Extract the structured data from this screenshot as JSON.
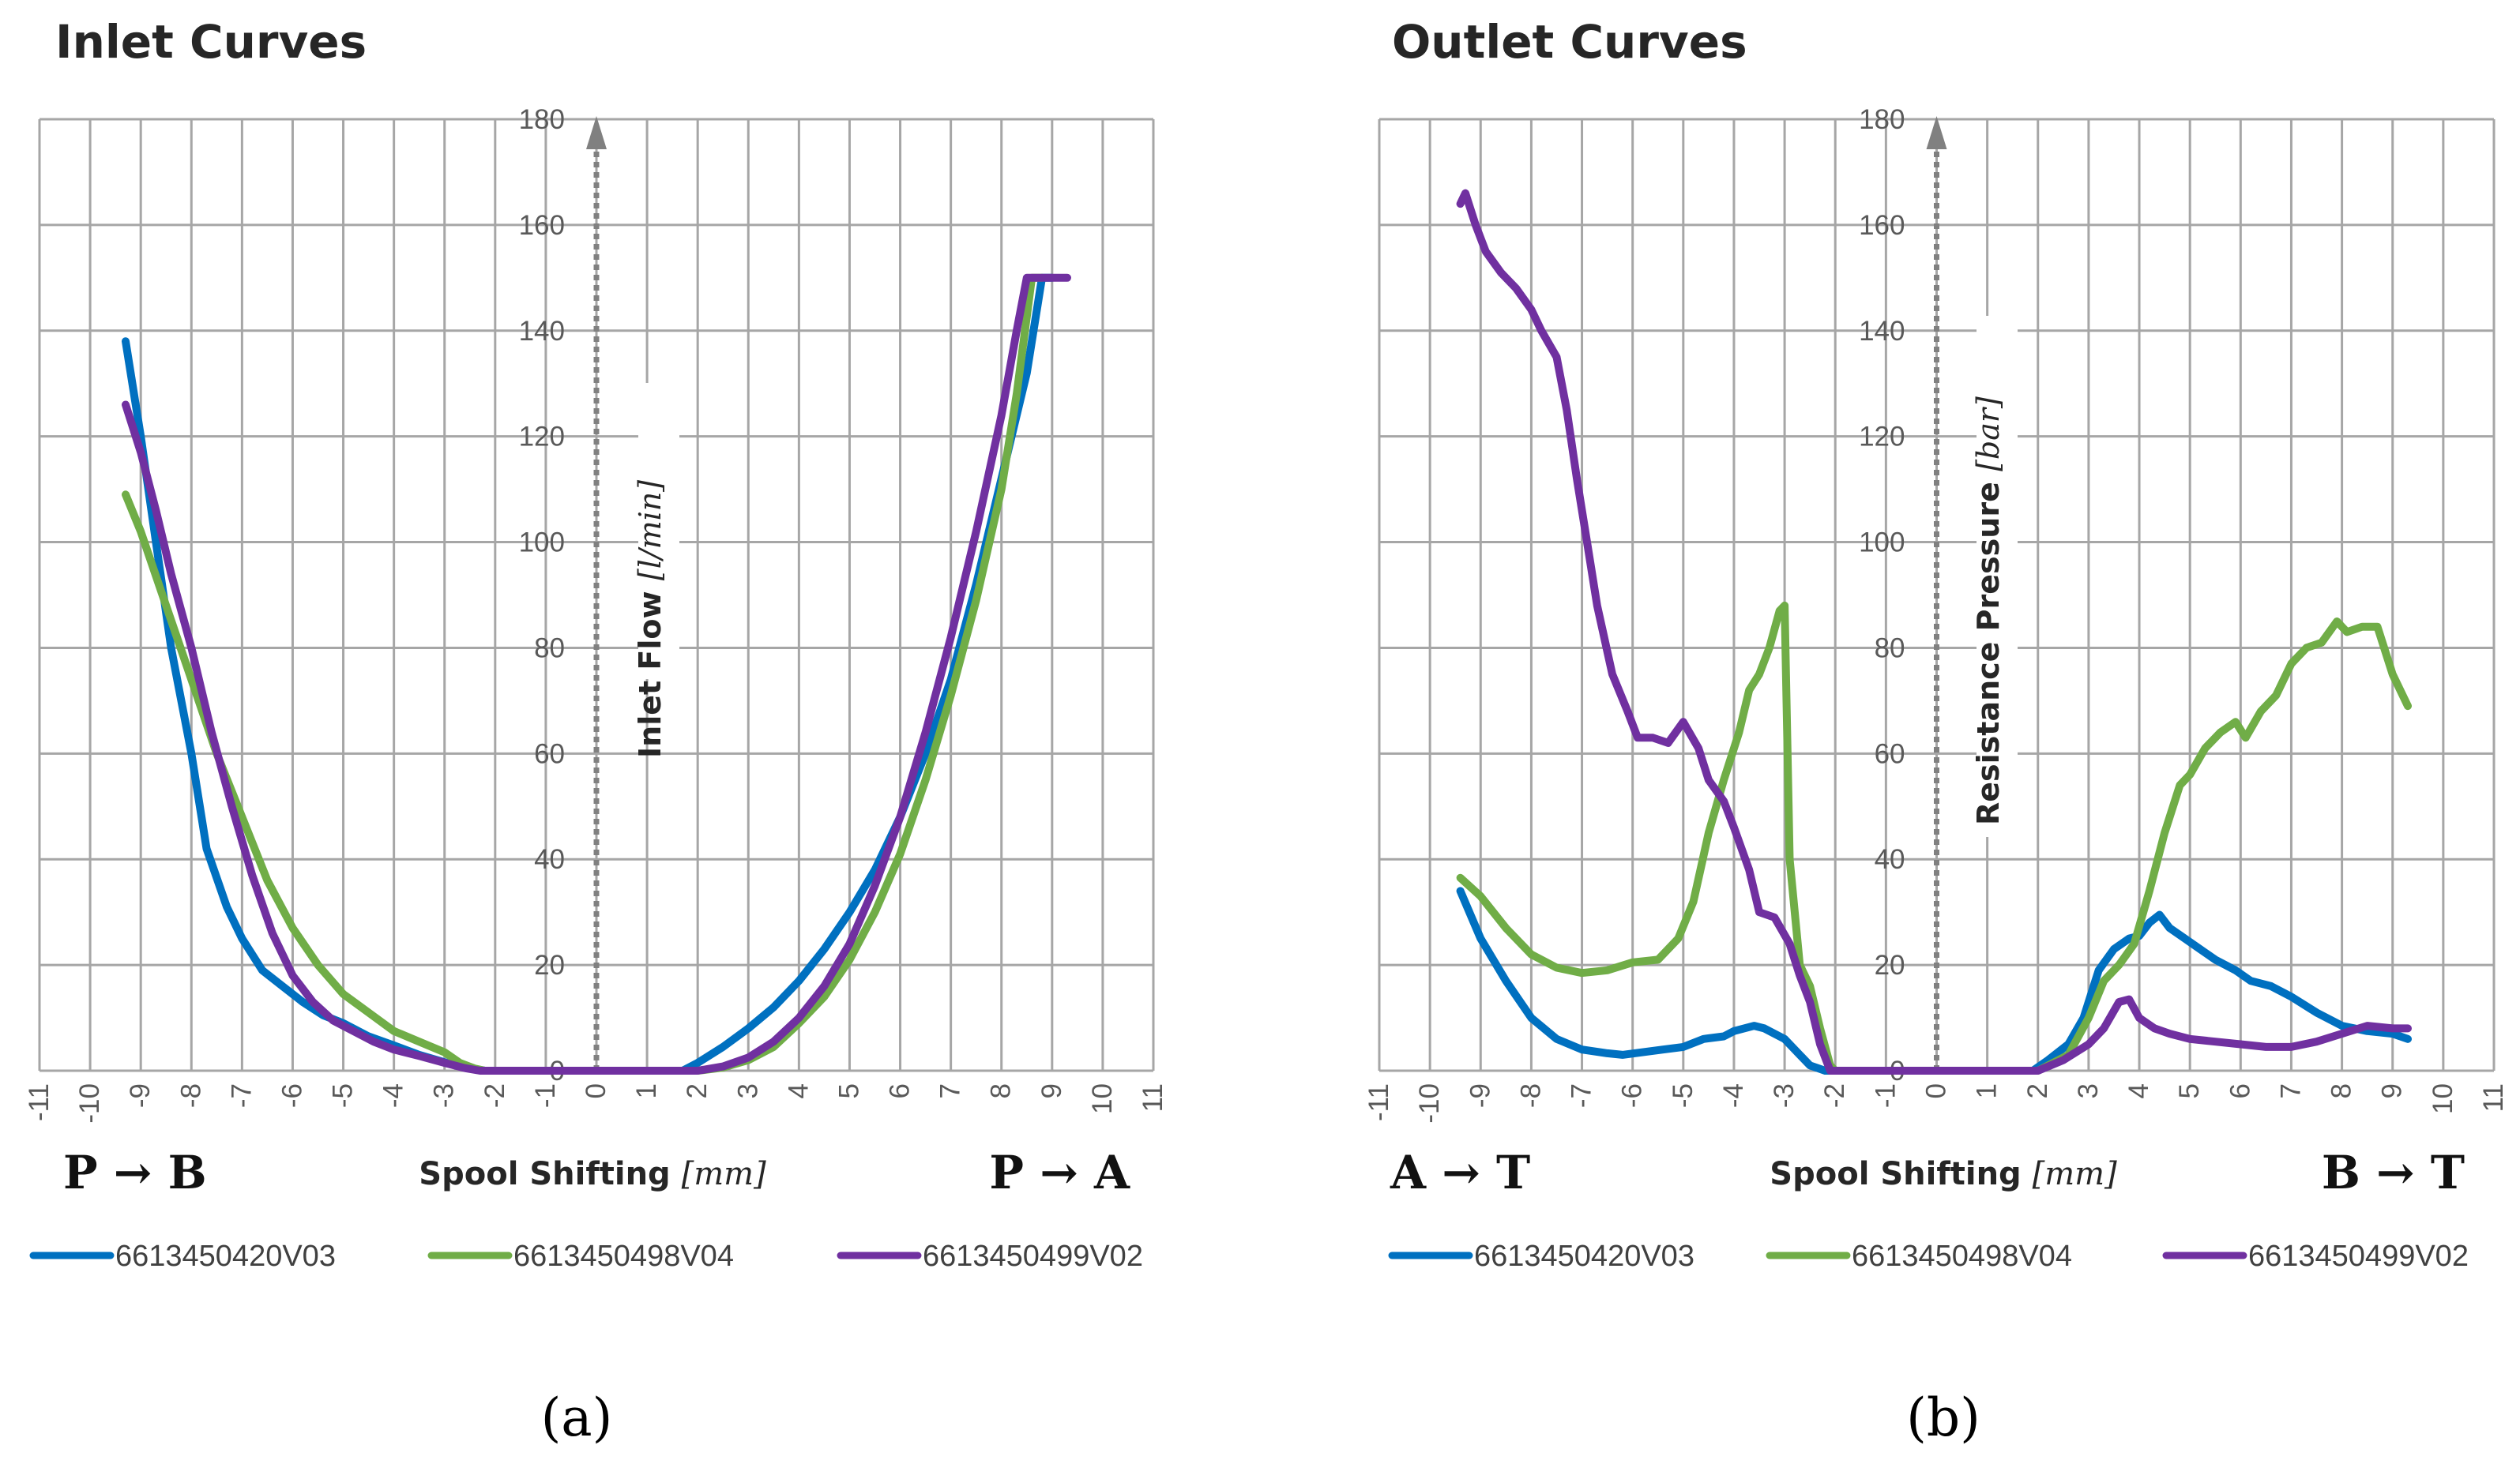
{
  "colors": {
    "series": [
      "#0070c0",
      "#70ad47",
      "#7030a0"
    ],
    "grid": "#a6a6a6",
    "axis": "#808080"
  },
  "chart_data": [
    {
      "type": "line",
      "title": "Inlet Curves",
      "ylabel": "Inlet Flow",
      "ylabel_unit": "[l/min]",
      "xlabel": "Spool Shifting",
      "xlabel_unit": "[mm]",
      "left_direction": "P → B",
      "right_direction": "P → A",
      "caption": "(a)",
      "xlim": [
        -11,
        11
      ],
      "ylim": [
        0,
        180
      ],
      "xticks": [
        -11,
        -10,
        -9,
        -8,
        -7,
        -6,
        -5,
        -4,
        -3,
        -2,
        -1,
        0,
        1,
        2,
        3,
        4,
        5,
        6,
        7,
        8,
        9,
        10,
        11
      ],
      "yticks": [
        0,
        20,
        40,
        60,
        80,
        100,
        120,
        140,
        160,
        180
      ],
      "grid": true,
      "legend_position": "bottom",
      "series": [
        {
          "name": "6613450420V03",
          "points": [
            [
              -9.3,
              138
            ],
            [
              -9.0,
              120
            ],
            [
              -8.7,
              100
            ],
            [
              -8.4,
              80
            ],
            [
              -8.0,
              60
            ],
            [
              -7.7,
              42
            ],
            [
              -7.3,
              31
            ],
            [
              -7.0,
              25
            ],
            [
              -6.6,
              19
            ],
            [
              -6.2,
              16
            ],
            [
              -5.8,
              13
            ],
            [
              -5.4,
              10.5
            ],
            [
              -5.0,
              9
            ],
            [
              -4.5,
              6.5
            ],
            [
              -4.0,
              4.8
            ],
            [
              -3.5,
              3
            ],
            [
              -3.0,
              1.6
            ],
            [
              -2.5,
              0.5
            ],
            [
              -2.2,
              0
            ],
            [
              1.7,
              0
            ],
            [
              2.0,
              1.5
            ],
            [
              2.5,
              4.5
            ],
            [
              3.0,
              8
            ],
            [
              3.5,
              12
            ],
            [
              4.0,
              17
            ],
            [
              4.5,
              23
            ],
            [
              5.0,
              30
            ],
            [
              5.5,
              38
            ],
            [
              6.0,
              48
            ],
            [
              6.5,
              60
            ],
            [
              7.0,
              74
            ],
            [
              7.5,
              92
            ],
            [
              8.0,
              112
            ],
            [
              8.5,
              132
            ],
            [
              8.8,
              150
            ],
            [
              9.0,
              150
            ]
          ]
        },
        {
          "name": "6613450498V04",
          "points": [
            [
              -9.3,
              109
            ],
            [
              -9.0,
              102
            ],
            [
              -8.5,
              88
            ],
            [
              -8.0,
              74
            ],
            [
              -7.5,
              60
            ],
            [
              -7.0,
              48
            ],
            [
              -6.5,
              36
            ],
            [
              -6.0,
              27
            ],
            [
              -5.5,
              20
            ],
            [
              -5.0,
              14.5
            ],
            [
              -4.5,
              11
            ],
            [
              -4.0,
              7.5
            ],
            [
              -3.5,
              5.5
            ],
            [
              -3.0,
              3.5
            ],
            [
              -2.7,
              1.5
            ],
            [
              -2.4,
              0.4
            ],
            [
              -2.2,
              0
            ],
            [
              2.0,
              0
            ],
            [
              2.5,
              0.6
            ],
            [
              3.0,
              2
            ],
            [
              3.5,
              4.5
            ],
            [
              4.0,
              9
            ],
            [
              4.5,
              14
            ],
            [
              5.0,
              21
            ],
            [
              5.5,
              30
            ],
            [
              6.0,
              41
            ],
            [
              6.5,
              55
            ],
            [
              7.0,
              71
            ],
            [
              7.5,
              89
            ],
            [
              8.0,
              110
            ],
            [
              8.3,
              128
            ],
            [
              8.6,
              150
            ],
            [
              8.8,
              150
            ]
          ]
        },
        {
          "name": "6613450499V02",
          "points": [
            [
              -9.3,
              126
            ],
            [
              -9.0,
              117
            ],
            [
              -8.7,
              106
            ],
            [
              -8.4,
              94
            ],
            [
              -8.0,
              80
            ],
            [
              -7.6,
              64
            ],
            [
              -7.2,
              50
            ],
            [
              -6.8,
              37
            ],
            [
              -6.4,
              26
            ],
            [
              -6.0,
              18
            ],
            [
              -5.6,
              13
            ],
            [
              -5.2,
              9.5
            ],
            [
              -4.8,
              7.5
            ],
            [
              -4.4,
              5.5
            ],
            [
              -4.0,
              4
            ],
            [
              -3.5,
              2.8
            ],
            [
              -3.0,
              1.5
            ],
            [
              -2.6,
              0.5
            ],
            [
              -2.3,
              0
            ],
            [
              2.0,
              0
            ],
            [
              2.5,
              0.8
            ],
            [
              3.0,
              2.5
            ],
            [
              3.5,
              5.5
            ],
            [
              4.0,
              10
            ],
            [
              4.5,
              16
            ],
            [
              5.0,
              24
            ],
            [
              5.5,
              35
            ],
            [
              6.0,
              48
            ],
            [
              6.5,
              64
            ],
            [
              7.0,
              82
            ],
            [
              7.5,
              102
            ],
            [
              8.0,
              124
            ],
            [
              8.3,
              140
            ],
            [
              8.5,
              150
            ],
            [
              9.3,
              150
            ]
          ]
        }
      ]
    },
    {
      "type": "line",
      "title": "Outlet Curves",
      "ylabel": "Resistance Pressure",
      "ylabel_unit": "[bar]",
      "xlabel": "Spool Shifting",
      "xlabel_unit": "[mm]",
      "left_direction": "A → T",
      "right_direction": "B → T",
      "caption": "(b)",
      "xlim": [
        -11,
        11
      ],
      "ylim": [
        0,
        180
      ],
      "xticks": [
        -11,
        -10,
        -9,
        -8,
        -7,
        -6,
        -5,
        -4,
        -3,
        -2,
        -1,
        0,
        1,
        2,
        3,
        4,
        5,
        6,
        7,
        8,
        9,
        10,
        11
      ],
      "yticks": [
        0,
        20,
        40,
        60,
        80,
        100,
        120,
        140,
        160,
        180
      ],
      "grid": true,
      "legend_position": "bottom",
      "series": [
        {
          "name": "6613450420V03",
          "points": [
            [
              -9.4,
              34
            ],
            [
              -9.0,
              25
            ],
            [
              -8.5,
              17
            ],
            [
              -8.0,
              10
            ],
            [
              -7.5,
              6
            ],
            [
              -7.0,
              4
            ],
            [
              -6.5,
              3.3
            ],
            [
              -6.2,
              3
            ],
            [
              -5.8,
              3.5
            ],
            [
              -5.4,
              4
            ],
            [
              -5.0,
              4.5
            ],
            [
              -4.6,
              6
            ],
            [
              -4.2,
              6.5
            ],
            [
              -4.0,
              7.5
            ],
            [
              -3.6,
              8.5
            ],
            [
              -3.4,
              8
            ],
            [
              -3.0,
              6
            ],
            [
              -2.7,
              3
            ],
            [
              -2.5,
              1
            ],
            [
              -2.2,
              0
            ],
            [
              1.9,
              0
            ],
            [
              2.2,
              2
            ],
            [
              2.6,
              5
            ],
            [
              2.9,
              10
            ],
            [
              3.2,
              19
            ],
            [
              3.5,
              23
            ],
            [
              3.8,
              25
            ],
            [
              4.0,
              25.5
            ],
            [
              4.2,
              28
            ],
            [
              4.4,
              29.5
            ],
            [
              4.6,
              27
            ],
            [
              4.9,
              25
            ],
            [
              5.2,
              23
            ],
            [
              5.5,
              21
            ],
            [
              5.9,
              19
            ],
            [
              6.2,
              17
            ],
            [
              6.6,
              16
            ],
            [
              7.0,
              14
            ],
            [
              7.5,
              11
            ],
            [
              8.0,
              8.5
            ],
            [
              8.5,
              7.5
            ],
            [
              9.0,
              7
            ],
            [
              9.3,
              6
            ]
          ]
        },
        {
          "name": "6613450498V04",
          "points": [
            [
              -9.4,
              36.5
            ],
            [
              -9.0,
              33
            ],
            [
              -8.5,
              27
            ],
            [
              -8.0,
              22
            ],
            [
              -7.5,
              19.5
            ],
            [
              -7.0,
              18.5
            ],
            [
              -6.5,
              19
            ],
            [
              -6.0,
              20.5
            ],
            [
              -5.5,
              21
            ],
            [
              -5.1,
              25
            ],
            [
              -4.8,
              32
            ],
            [
              -4.5,
              45
            ],
            [
              -4.2,
              55
            ],
            [
              -3.9,
              64
            ],
            [
              -3.7,
              72
            ],
            [
              -3.5,
              75
            ],
            [
              -3.3,
              80
            ],
            [
              -3.1,
              87
            ],
            [
              -3.0,
              88
            ],
            [
              -2.9,
              40
            ],
            [
              -2.7,
              20
            ],
            [
              -2.5,
              16
            ],
            [
              -2.3,
              8
            ],
            [
              -2.1,
              1
            ],
            [
              -2.0,
              0
            ],
            [
              2.0,
              0
            ],
            [
              2.6,
              3
            ],
            [
              3.0,
              10
            ],
            [
              3.3,
              17
            ],
            [
              3.6,
              20
            ],
            [
              3.9,
              24
            ],
            [
              4.2,
              34
            ],
            [
              4.5,
              45
            ],
            [
              4.8,
              54
            ],
            [
              5.0,
              56
            ],
            [
              5.3,
              61
            ],
            [
              5.6,
              64
            ],
            [
              5.9,
              66
            ],
            [
              6.1,
              63
            ],
            [
              6.4,
              68
            ],
            [
              6.7,
              71
            ],
            [
              7.0,
              77
            ],
            [
              7.3,
              80
            ],
            [
              7.6,
              81
            ],
            [
              7.9,
              85
            ],
            [
              8.1,
              83
            ],
            [
              8.4,
              84
            ],
            [
              8.7,
              84
            ],
            [
              9.0,
              75
            ],
            [
              9.3,
              69
            ]
          ]
        },
        {
          "name": "6613450499V02",
          "points": [
            [
              -9.4,
              164
            ],
            [
              -9.3,
              166
            ],
            [
              -9.1,
              160
            ],
            [
              -8.9,
              155
            ],
            [
              -8.6,
              151
            ],
            [
              -8.3,
              148
            ],
            [
              -8.0,
              144
            ],
            [
              -7.8,
              140
            ],
            [
              -7.5,
              135
            ],
            [
              -7.3,
              125
            ],
            [
              -7.1,
              112
            ],
            [
              -6.9,
              100
            ],
            [
              -6.7,
              88
            ],
            [
              -6.4,
              75
            ],
            [
              -6.1,
              68
            ],
            [
              -5.9,
              63
            ],
            [
              -5.6,
              63
            ],
            [
              -5.3,
              62
            ],
            [
              -5.0,
              66
            ],
            [
              -4.7,
              61
            ],
            [
              -4.5,
              55
            ],
            [
              -4.2,
              51
            ],
            [
              -4.0,
              46
            ],
            [
              -3.7,
              38
            ],
            [
              -3.5,
              30
            ],
            [
              -3.2,
              29
            ],
            [
              -2.9,
              24
            ],
            [
              -2.7,
              18
            ],
            [
              -2.5,
              13
            ],
            [
              -2.3,
              5
            ],
            [
              -2.1,
              0
            ],
            [
              2.0,
              0
            ],
            [
              2.5,
              2
            ],
            [
              3.0,
              5
            ],
            [
              3.3,
              8
            ],
            [
              3.6,
              13
            ],
            [
              3.8,
              13.5
            ],
            [
              4.0,
              10
            ],
            [
              4.3,
              8
            ],
            [
              4.6,
              7
            ],
            [
              5.0,
              6
            ],
            [
              5.5,
              5.5
            ],
            [
              6.0,
              5
            ],
            [
              6.5,
              4.5
            ],
            [
              7.0,
              4.5
            ],
            [
              7.5,
              5.5
            ],
            [
              8.0,
              7
            ],
            [
              8.5,
              8.5
            ],
            [
              9.0,
              8
            ],
            [
              9.3,
              8
            ]
          ]
        }
      ]
    }
  ]
}
